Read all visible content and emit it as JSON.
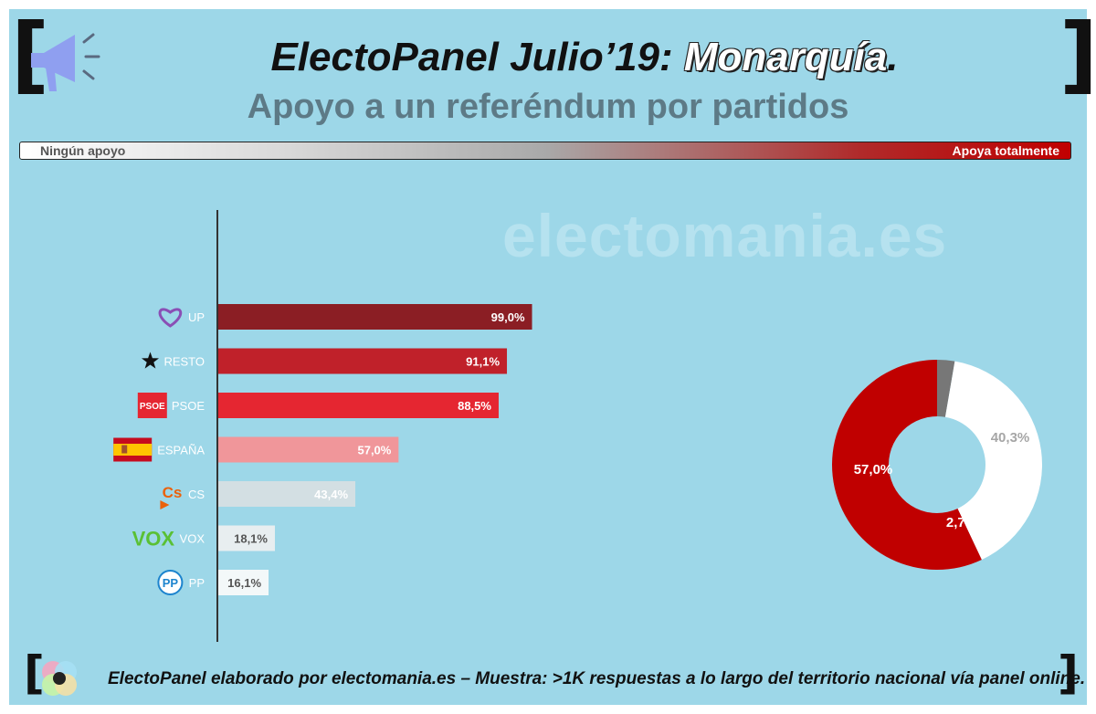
{
  "header": {
    "title_prefix": "ElectoPanel Julio’19:",
    "title_highlight": "Monarquía",
    "title_suffix": ".",
    "subtitle": "Apoyo a un referéndum por partidos"
  },
  "scale": {
    "left_label": "Ningún apoyo",
    "right_label": "Apoya totalmente"
  },
  "watermark": "electomania.es",
  "footer": {
    "text": "ElectoPanel elaborado por electomania.es – Muestra: >1K respuestas a lo largo del territorio nacional vía panel online."
  },
  "icons": {
    "header_icon": "megaphone-icon",
    "footer_icon": "electomania-logo-icon"
  },
  "chart_data": [
    {
      "type": "bar",
      "orientation": "horizontal",
      "categories": [
        "UP",
        "RESTO",
        "PSOE",
        "ESPAÑA",
        "CS",
        "VOX",
        "PP"
      ],
      "values": [
        99.0,
        91.1,
        88.5,
        57.0,
        43.4,
        18.1,
        16.1
      ],
      "value_labels": [
        "99,0%",
        "91,1%",
        "88,5%",
        "57,0%",
        "43,4%",
        "18,1%",
        "16,1%"
      ],
      "bar_colors": [
        "#8b1e24",
        "#c0212a",
        "#e52631",
        "#f0969a",
        "#d3dfe3",
        "#e8eef0",
        "#f3f8f9"
      ],
      "label_colors": [
        "#ffffff",
        "#ffffff",
        "#ffffff",
        "#ffffff",
        "#ffffff",
        "#555555",
        "#555555"
      ],
      "category_icons": [
        "heart-icon",
        "star-icon",
        "psoe-logo-icon",
        "spain-flag-icon",
        "cs-logo-icon",
        "vox-logo-icon",
        "pp-logo-icon"
      ],
      "icon_texts": [
        "",
        "",
        "PSOE",
        "",
        "Cs",
        "VOX",
        "PP"
      ],
      "xlim": [
        0,
        100
      ]
    },
    {
      "type": "pie",
      "style": "donut",
      "labels": [
        "57,0%",
        "2,7%",
        "40,3%"
      ],
      "values": [
        57.0,
        2.7,
        40.3
      ],
      "colors": [
        "#c00000",
        "#777777",
        "#ffffff"
      ],
      "label_colors": [
        "#ffffff",
        "#ffffff",
        "#a6a6a6"
      ]
    }
  ]
}
